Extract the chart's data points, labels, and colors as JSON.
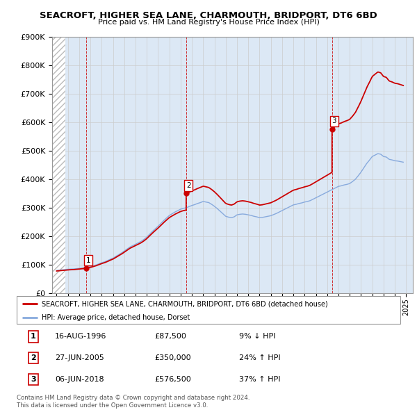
{
  "title": "SEACROFT, HIGHER SEA LANE, CHARMOUTH, BRIDPORT, DT6 6BD",
  "subtitle": "Price paid vs. HM Land Registry's House Price Index (HPI)",
  "ylim": [
    0,
    900000
  ],
  "yticks": [
    0,
    100000,
    200000,
    300000,
    400000,
    500000,
    600000,
    700000,
    800000,
    900000
  ],
  "ytick_labels": [
    "£0",
    "£100K",
    "£200K",
    "£300K",
    "£400K",
    "£500K",
    "£600K",
    "£700K",
    "£800K",
    "£900K"
  ],
  "xlim_start": 1993.6,
  "xlim_end": 2025.6,
  "sale_color": "#cc0000",
  "hpi_color": "#88aadd",
  "grid_color": "#cccccc",
  "bg_color": "#dce8f5",
  "sale_dates": [
    1996.62,
    2005.49,
    2018.43
  ],
  "sale_prices": [
    87500,
    350000,
    576500
  ],
  "sale_labels": [
    "1",
    "2",
    "3"
  ],
  "legend_sale": "SEACROFT, HIGHER SEA LANE, CHARMOUTH, BRIDPORT, DT6 6BD (detached house)",
  "legend_hpi": "HPI: Average price, detached house, Dorset",
  "table_rows": [
    [
      "1",
      "16-AUG-1996",
      "£87,500",
      "9% ↓ HPI"
    ],
    [
      "2",
      "27-JUN-2005",
      "£350,000",
      "24% ↑ HPI"
    ],
    [
      "3",
      "06-JUN-2018",
      "£576,500",
      "37% ↑ HPI"
    ]
  ],
  "footnote": "Contains HM Land Registry data © Crown copyright and database right 2024.\nThis data is licensed under the Open Government Licence v3.0.",
  "hpi_years": [
    1994.0,
    1994.25,
    1994.5,
    1994.75,
    1995.0,
    1995.25,
    1995.5,
    1995.75,
    1996.0,
    1996.25,
    1996.5,
    1996.75,
    1997.0,
    1997.25,
    1997.5,
    1997.75,
    1998.0,
    1998.25,
    1998.5,
    1998.75,
    1999.0,
    1999.25,
    1999.5,
    1999.75,
    2000.0,
    2000.25,
    2000.5,
    2000.75,
    2001.0,
    2001.25,
    2001.5,
    2001.75,
    2002.0,
    2002.25,
    2002.5,
    2002.75,
    2003.0,
    2003.25,
    2003.5,
    2003.75,
    2004.0,
    2004.25,
    2004.5,
    2004.75,
    2005.0,
    2005.25,
    2005.5,
    2005.75,
    2006.0,
    2006.25,
    2006.5,
    2006.75,
    2007.0,
    2007.25,
    2007.5,
    2007.75,
    2008.0,
    2008.25,
    2008.5,
    2008.75,
    2009.0,
    2009.25,
    2009.5,
    2009.75,
    2010.0,
    2010.25,
    2010.5,
    2010.75,
    2011.0,
    2011.25,
    2011.5,
    2011.75,
    2012.0,
    2012.25,
    2012.5,
    2012.75,
    2013.0,
    2013.25,
    2013.5,
    2013.75,
    2014.0,
    2014.25,
    2014.5,
    2014.75,
    2015.0,
    2015.25,
    2015.5,
    2015.75,
    2016.0,
    2016.25,
    2016.5,
    2016.75,
    2017.0,
    2017.25,
    2017.5,
    2017.75,
    2018.0,
    2018.25,
    2018.5,
    2018.75,
    2019.0,
    2019.25,
    2019.5,
    2019.75,
    2020.0,
    2020.25,
    2020.5,
    2020.75,
    2021.0,
    2021.25,
    2021.5,
    2021.75,
    2022.0,
    2022.25,
    2022.5,
    2022.75,
    2023.0,
    2023.25,
    2023.5,
    2023.75,
    2024.0,
    2024.25,
    2024.5,
    2024.75
  ],
  "hpi_values": [
    80000,
    81000,
    82000,
    83000,
    84000,
    84500,
    85000,
    86000,
    87000,
    88000,
    89000,
    91000,
    93000,
    96000,
    99000,
    103000,
    107000,
    110000,
    114000,
    119000,
    123000,
    129000,
    135000,
    141000,
    148000,
    155000,
    162000,
    167000,
    172000,
    177000,
    182000,
    189000,
    197000,
    207000,
    217000,
    226000,
    235000,
    245000,
    255000,
    264000,
    273000,
    279000,
    285000,
    290000,
    295000,
    298000,
    300000,
    304000,
    308000,
    311000,
    315000,
    318000,
    322000,
    320000,
    318000,
    312000,
    305000,
    297000,
    288000,
    279000,
    270000,
    267000,
    265000,
    268000,
    275000,
    277000,
    278000,
    277000,
    275000,
    273000,
    270000,
    268000,
    265000,
    266000,
    268000,
    270000,
    272000,
    276000,
    280000,
    285000,
    290000,
    295000,
    300000,
    305000,
    310000,
    312000,
    315000,
    317000,
    320000,
    322000,
    325000,
    330000,
    335000,
    340000,
    345000,
    350000,
    355000,
    360000,
    365000,
    370000,
    375000,
    377000,
    380000,
    382000,
    385000,
    392000,
    400000,
    412000,
    425000,
    440000,
    455000,
    467000,
    480000,
    485000,
    490000,
    488000,
    480000,
    478000,
    470000,
    468000,
    465000,
    464000,
    462000,
    460000
  ],
  "hatch_end": 1994.75
}
